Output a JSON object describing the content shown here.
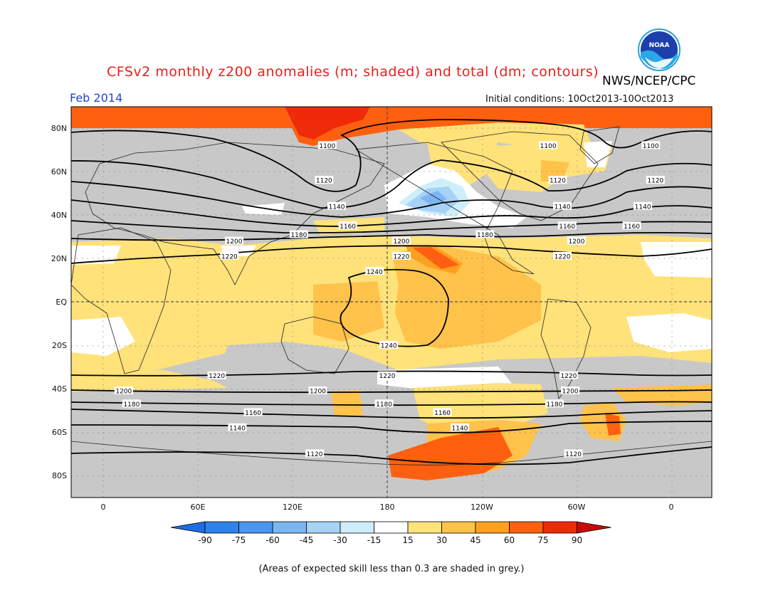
{
  "header": {
    "title": "CFSv2 monthly z200 anomalies (m; shaded) and total (dm; contours)",
    "agency": "NWS/NCEP/CPC",
    "month": "Feb 2014",
    "initial_conditions": "Initial conditions: 10Oct2013-10Oct2013",
    "logo_text": "NOAA"
  },
  "map": {
    "lat_labels": [
      "80N",
      "60N",
      "40N",
      "20N",
      "EQ",
      "20S",
      "40S",
      "60S",
      "80S"
    ],
    "lon_labels": [
      "0",
      "60E",
      "120E",
      "180",
      "120W",
      "60W",
      "0"
    ],
    "contours": [
      {
        "value": "1100",
        "label_lon": [
          -13,
          142,
          282
        ]
      },
      {
        "value": "1120",
        "label_lon": [
          -10,
          140,
          288
        ]
      },
      {
        "value": "1140",
        "label_lon": [
          -18,
          148,
          291
        ]
      },
      {
        "value": "1160",
        "label_lon": [
          -25,
          155,
          294
        ]
      },
      {
        "value": "1180",
        "label_lon": [
          124,
          242
        ]
      },
      {
        "value": "1200",
        "label_lon": [
          83,
          189,
          300
        ]
      },
      {
        "value": "1220",
        "label_lon": [
          80,
          189,
          291
        ]
      },
      {
        "value": "1240",
        "label_lon": [
          172,
          181
        ]
      }
    ],
    "south_contours": [
      {
        "value": "1220",
        "label_lon": [
          72,
          180,
          295
        ]
      },
      {
        "value": "1200",
        "label_lon": [
          13,
          136,
          296
        ]
      },
      {
        "value": "1180",
        "label_lon": [
          18,
          178,
          286
        ]
      },
      {
        "value": "1160",
        "label_lon": [
          95,
          215
        ]
      },
      {
        "value": "1140",
        "label_lon": [
          85,
          226
        ]
      },
      {
        "value": "1120",
        "label_lon": [
          134,
          298
        ]
      }
    ]
  },
  "legend": {
    "ticks": [
      "-90",
      "-75",
      "-60",
      "-45",
      "-30",
      "-15",
      "15",
      "30",
      "45",
      "60",
      "75",
      "90"
    ],
    "colors": [
      "#1f6ee0",
      "#2f82ea",
      "#4b97ee",
      "#7ab6f2",
      "#a6d2f6",
      "#cdeefa",
      "#ffffff",
      "#ffe27a",
      "#ffc24a",
      "#ffa020",
      "#ff6010",
      "#f02a08",
      "#c80a06"
    ]
  },
  "footnote": "(Areas of expected skill less than 0.3 are shaded in grey.)",
  "colors": {
    "grey": "#c8c8c8",
    "light_yellow": "#ffe27a",
    "yellow": "#ffc24a",
    "orange": "#ffa020",
    "dark_orange": "#ff6010",
    "red": "#f02a08",
    "light_blue": "#a6d2f6",
    "blue": "#7ab6f2"
  }
}
